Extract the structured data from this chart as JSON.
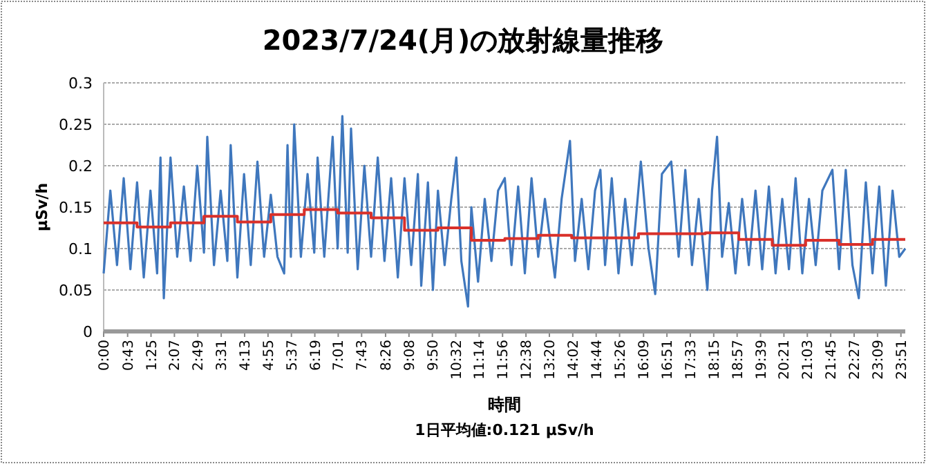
{
  "chart_data": {
    "type": "line",
    "title": "2023/7/24(月)の放射線量推移",
    "xlabel": "時間",
    "ylabel": "µSv/h",
    "annotations": [
      "1日平均値:0.121 µSv/h"
    ],
    "grid": "y",
    "xlim": [
      0,
      23.98
    ],
    "ylim": [
      0,
      0.3
    ],
    "yticks": [
      0,
      0.05,
      0.1,
      0.15,
      0.2,
      0.25,
      0.3
    ],
    "xticks": [
      {
        "value": 0,
        "label": "0:00"
      },
      {
        "value": 0.7167,
        "label": "0:43"
      },
      {
        "value": 1.4167,
        "label": "1:25"
      },
      {
        "value": 2.1167,
        "label": "2:07"
      },
      {
        "value": 2.8167,
        "label": "2:49"
      },
      {
        "value": 3.5167,
        "label": "3:31"
      },
      {
        "value": 4.2167,
        "label": "4:13"
      },
      {
        "value": 4.9167,
        "label": "4:55"
      },
      {
        "value": 5.6167,
        "label": "5:37"
      },
      {
        "value": 6.3167,
        "label": "6:19"
      },
      {
        "value": 7.0167,
        "label": "7:01"
      },
      {
        "value": 7.7167,
        "label": "7:43"
      },
      {
        "value": 8.4333,
        "label": "8:26"
      },
      {
        "value": 9.1333,
        "label": "9:08"
      },
      {
        "value": 9.8333,
        "label": "9:50"
      },
      {
        "value": 10.5333,
        "label": "10:32"
      },
      {
        "value": 11.2333,
        "label": "11:14"
      },
      {
        "value": 11.9333,
        "label": "11:56"
      },
      {
        "value": 12.6333,
        "label": "12:38"
      },
      {
        "value": 13.3333,
        "label": "13:20"
      },
      {
        "value": 14.0333,
        "label": "14:02"
      },
      {
        "value": 14.7333,
        "label": "14:44"
      },
      {
        "value": 15.4333,
        "label": "15:26"
      },
      {
        "value": 16.15,
        "label": "16:09"
      },
      {
        "value": 16.85,
        "label": "16:51"
      },
      {
        "value": 17.55,
        "label": "17:33"
      },
      {
        "value": 18.25,
        "label": "18:15"
      },
      {
        "value": 18.95,
        "label": "18:57"
      },
      {
        "value": 19.65,
        "label": "19:39"
      },
      {
        "value": 20.35,
        "label": "20:21"
      },
      {
        "value": 21.05,
        "label": "21:03"
      },
      {
        "value": 21.75,
        "label": "21:45"
      },
      {
        "value": 22.45,
        "label": "22:27"
      },
      {
        "value": 23.15,
        "label": "23:09"
      },
      {
        "value": 23.85,
        "label": "23:51"
      }
    ],
    "series": [
      {
        "color": "#3f77bd",
        "x": [
          0,
          0.2,
          0.4,
          0.6,
          0.8,
          1.0,
          1.2,
          1.4,
          1.6,
          1.7,
          1.8,
          2.0,
          2.2,
          2.4,
          2.6,
          2.8,
          3.0,
          3.1,
          3.3,
          3.5,
          3.7,
          3.8,
          4.0,
          4.2,
          4.4,
          4.6,
          4.8,
          5.0,
          5.2,
          5.4,
          5.5,
          5.6,
          5.7,
          5.9,
          6.1,
          6.3,
          6.4,
          6.6,
          6.85,
          7.0,
          7.14,
          7.3,
          7.4,
          7.6,
          7.8,
          8.0,
          8.2,
          8.4,
          8.6,
          8.8,
          9.0,
          9.2,
          9.4,
          9.5,
          9.7,
          9.85,
          10.0,
          10.2,
          10.4,
          10.55,
          10.7,
          10.9,
          11.0,
          11.2,
          11.4,
          11.6,
          11.8,
          12.0,
          12.2,
          12.4,
          12.6,
          12.8,
          13.0,
          13.2,
          13.5,
          13.7,
          13.95,
          14.1,
          14.3,
          14.5,
          14.7,
          14.86,
          15.0,
          15.2,
          15.4,
          15.6,
          15.8,
          16.07,
          16.3,
          16.5,
          16.7,
          16.98,
          17.2,
          17.4,
          17.6,
          17.8,
          18.06,
          18.2,
          18.35,
          18.5,
          18.7,
          18.9,
          19.1,
          19.3,
          19.5,
          19.7,
          19.9,
          20.1,
          20.3,
          20.5,
          20.7,
          20.9,
          21.1,
          21.3,
          21.5,
          21.8,
          22.0,
          22.2,
          22.4,
          22.59,
          22.8,
          23.0,
          23.2,
          23.4,
          23.6,
          23.8,
          23.98
        ],
        "values": [
          0.07,
          0.17,
          0.08,
          0.185,
          0.075,
          0.18,
          0.065,
          0.17,
          0.07,
          0.21,
          0.04,
          0.21,
          0.09,
          0.175,
          0.085,
          0.2,
          0.095,
          0.235,
          0.08,
          0.17,
          0.085,
          0.225,
          0.065,
          0.19,
          0.08,
          0.205,
          0.09,
          0.165,
          0.09,
          0.07,
          0.225,
          0.09,
          0.25,
          0.09,
          0.19,
          0.095,
          0.21,
          0.09,
          0.235,
          0.1,
          0.26,
          0.095,
          0.245,
          0.075,
          0.2,
          0.09,
          0.21,
          0.085,
          0.185,
          0.065,
          0.185,
          0.08,
          0.19,
          0.055,
          0.18,
          0.05,
          0.17,
          0.08,
          0.16,
          0.21,
          0.085,
          0.03,
          0.15,
          0.06,
          0.16,
          0.085,
          0.17,
          0.185,
          0.08,
          0.175,
          0.07,
          0.185,
          0.09,
          0.16,
          0.065,
          0.16,
          0.23,
          0.085,
          0.16,
          0.075,
          0.17,
          0.195,
          0.08,
          0.185,
          0.07,
          0.16,
          0.08,
          0.205,
          0.1,
          0.045,
          0.19,
          0.205,
          0.09,
          0.195,
          0.08,
          0.16,
          0.05,
          0.17,
          0.235,
          0.09,
          0.155,
          0.07,
          0.16,
          0.08,
          0.17,
          0.075,
          0.175,
          0.07,
          0.16,
          0.075,
          0.185,
          0.07,
          0.16,
          0.08,
          0.17,
          0.195,
          0.075,
          0.195,
          0.08,
          0.04,
          0.18,
          0.07,
          0.175,
          0.055,
          0.17,
          0.09,
          0.1
        ]
      },
      {
        "type": "step",
        "color": "#d9302a",
        "x": [
          0,
          1,
          2,
          3,
          4,
          5,
          6,
          7,
          8,
          9,
          10,
          11,
          12,
          13,
          14,
          15,
          16,
          17,
          18,
          19,
          20,
          21,
          22,
          23,
          23.98
        ],
        "values": [
          0.131,
          0.126,
          0.131,
          0.139,
          0.132,
          0.141,
          0.147,
          0.143,
          0.137,
          0.122,
          0.125,
          0.11,
          0.112,
          0.116,
          0.113,
          0.113,
          0.118,
          0.118,
          0.119,
          0.111,
          0.104,
          0.11,
          0.105,
          0.111,
          0.111
        ]
      }
    ]
  }
}
